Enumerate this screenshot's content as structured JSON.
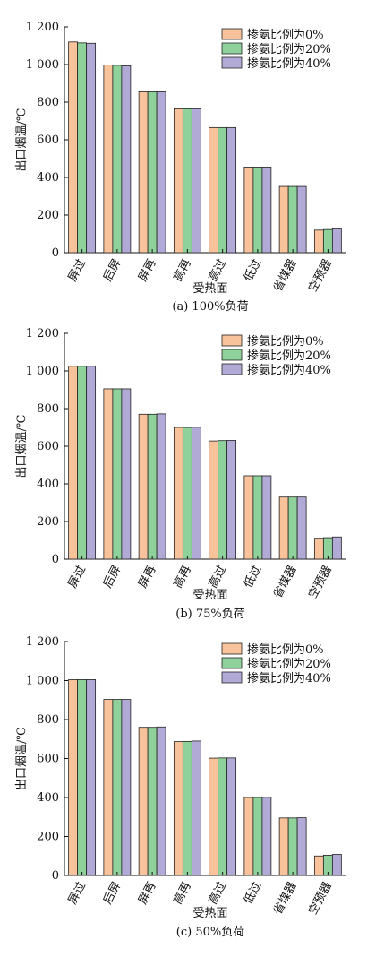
{
  "figure": {
    "panels": [
      {
        "caption": "(a) 100%负荷"
      },
      {
        "caption": "(b) 75%负荷"
      },
      {
        "caption": "(c) 50%负荷"
      }
    ]
  },
  "colors": {
    "series_0": "#f8c39b",
    "series_1": "#8fd19a",
    "series_2": "#b2aad6",
    "edge": "#222222"
  },
  "chart_data": [
    {
      "type": "bar",
      "title": "(a) 100%负荷",
      "xlabel": "受热面",
      "ylabel": "出口烟温/℃",
      "ylim": [
        0,
        1200
      ],
      "yticks": [
        0,
        200,
        400,
        600,
        800,
        1000,
        1200
      ],
      "ytick_labels": [
        "0",
        "200",
        "400",
        "600",
        "800",
        "1 000",
        "1 200"
      ],
      "categories": [
        "屏过",
        "后屏",
        "屏再",
        "高再",
        "高过",
        "低过",
        "省煤器",
        "空预器"
      ],
      "legend_position": "top-right",
      "grid": false,
      "series": [
        {
          "name": "掺氨比例为0%",
          "values": [
            1120,
            998,
            855,
            765,
            665,
            455,
            352,
            120
          ]
        },
        {
          "name": "掺氨比例为20%",
          "values": [
            1115,
            996,
            855,
            765,
            665,
            455,
            352,
            123
          ]
        },
        {
          "name": "掺氨比例为40%",
          "values": [
            1113,
            993,
            855,
            765,
            665,
            455,
            352,
            127
          ]
        }
      ]
    },
    {
      "type": "bar",
      "title": "(b) 75%负荷",
      "xlabel": "受热面",
      "ylabel": "出口烟温/℃",
      "ylim": [
        0,
        1200
      ],
      "yticks": [
        0,
        200,
        400,
        600,
        800,
        1000,
        1200
      ],
      "ytick_labels": [
        "0",
        "200",
        "400",
        "600",
        "800",
        "1 000",
        "1 200"
      ],
      "categories": [
        "屏过",
        "后屏",
        "屏再",
        "高再",
        "高过",
        "低过",
        "省煤器",
        "空预器"
      ],
      "legend_position": "top-right",
      "grid": false,
      "series": [
        {
          "name": "掺氨比例为0%",
          "values": [
            1025,
            905,
            770,
            700,
            628,
            443,
            330,
            111
          ]
        },
        {
          "name": "掺氨比例为20%",
          "values": [
            1025,
            905,
            770,
            700,
            630,
            443,
            330,
            114
          ]
        },
        {
          "name": "掺氨比例为40%",
          "values": [
            1025,
            905,
            772,
            701,
            631,
            443,
            330,
            118
          ]
        }
      ]
    },
    {
      "type": "bar",
      "title": "(c) 50%负荷",
      "xlabel": "受热面",
      "ylabel": "出口烟温/℃",
      "ylim": [
        0,
        1200
      ],
      "yticks": [
        0,
        200,
        400,
        600,
        800,
        1000,
        1200
      ],
      "ytick_labels": [
        "0",
        "200",
        "400",
        "600",
        "800",
        "1 000",
        "1 200"
      ],
      "categories": [
        "屏过",
        "后屏",
        "屏再",
        "高再",
        "高过",
        "低过",
        "省煤器",
        "空预器"
      ],
      "legend_position": "top-right",
      "grid": false,
      "series": [
        {
          "name": "掺氨比例为0%",
          "values": [
            1005,
            903,
            760,
            687,
            602,
            400,
            295,
            100
          ]
        },
        {
          "name": "掺氨比例为20%",
          "values": [
            1005,
            903,
            760,
            688,
            603,
            400,
            295,
            104
          ]
        },
        {
          "name": "掺氨比例为40%",
          "values": [
            1005,
            903,
            762,
            690,
            603,
            401,
            296,
            108
          ]
        }
      ]
    }
  ]
}
